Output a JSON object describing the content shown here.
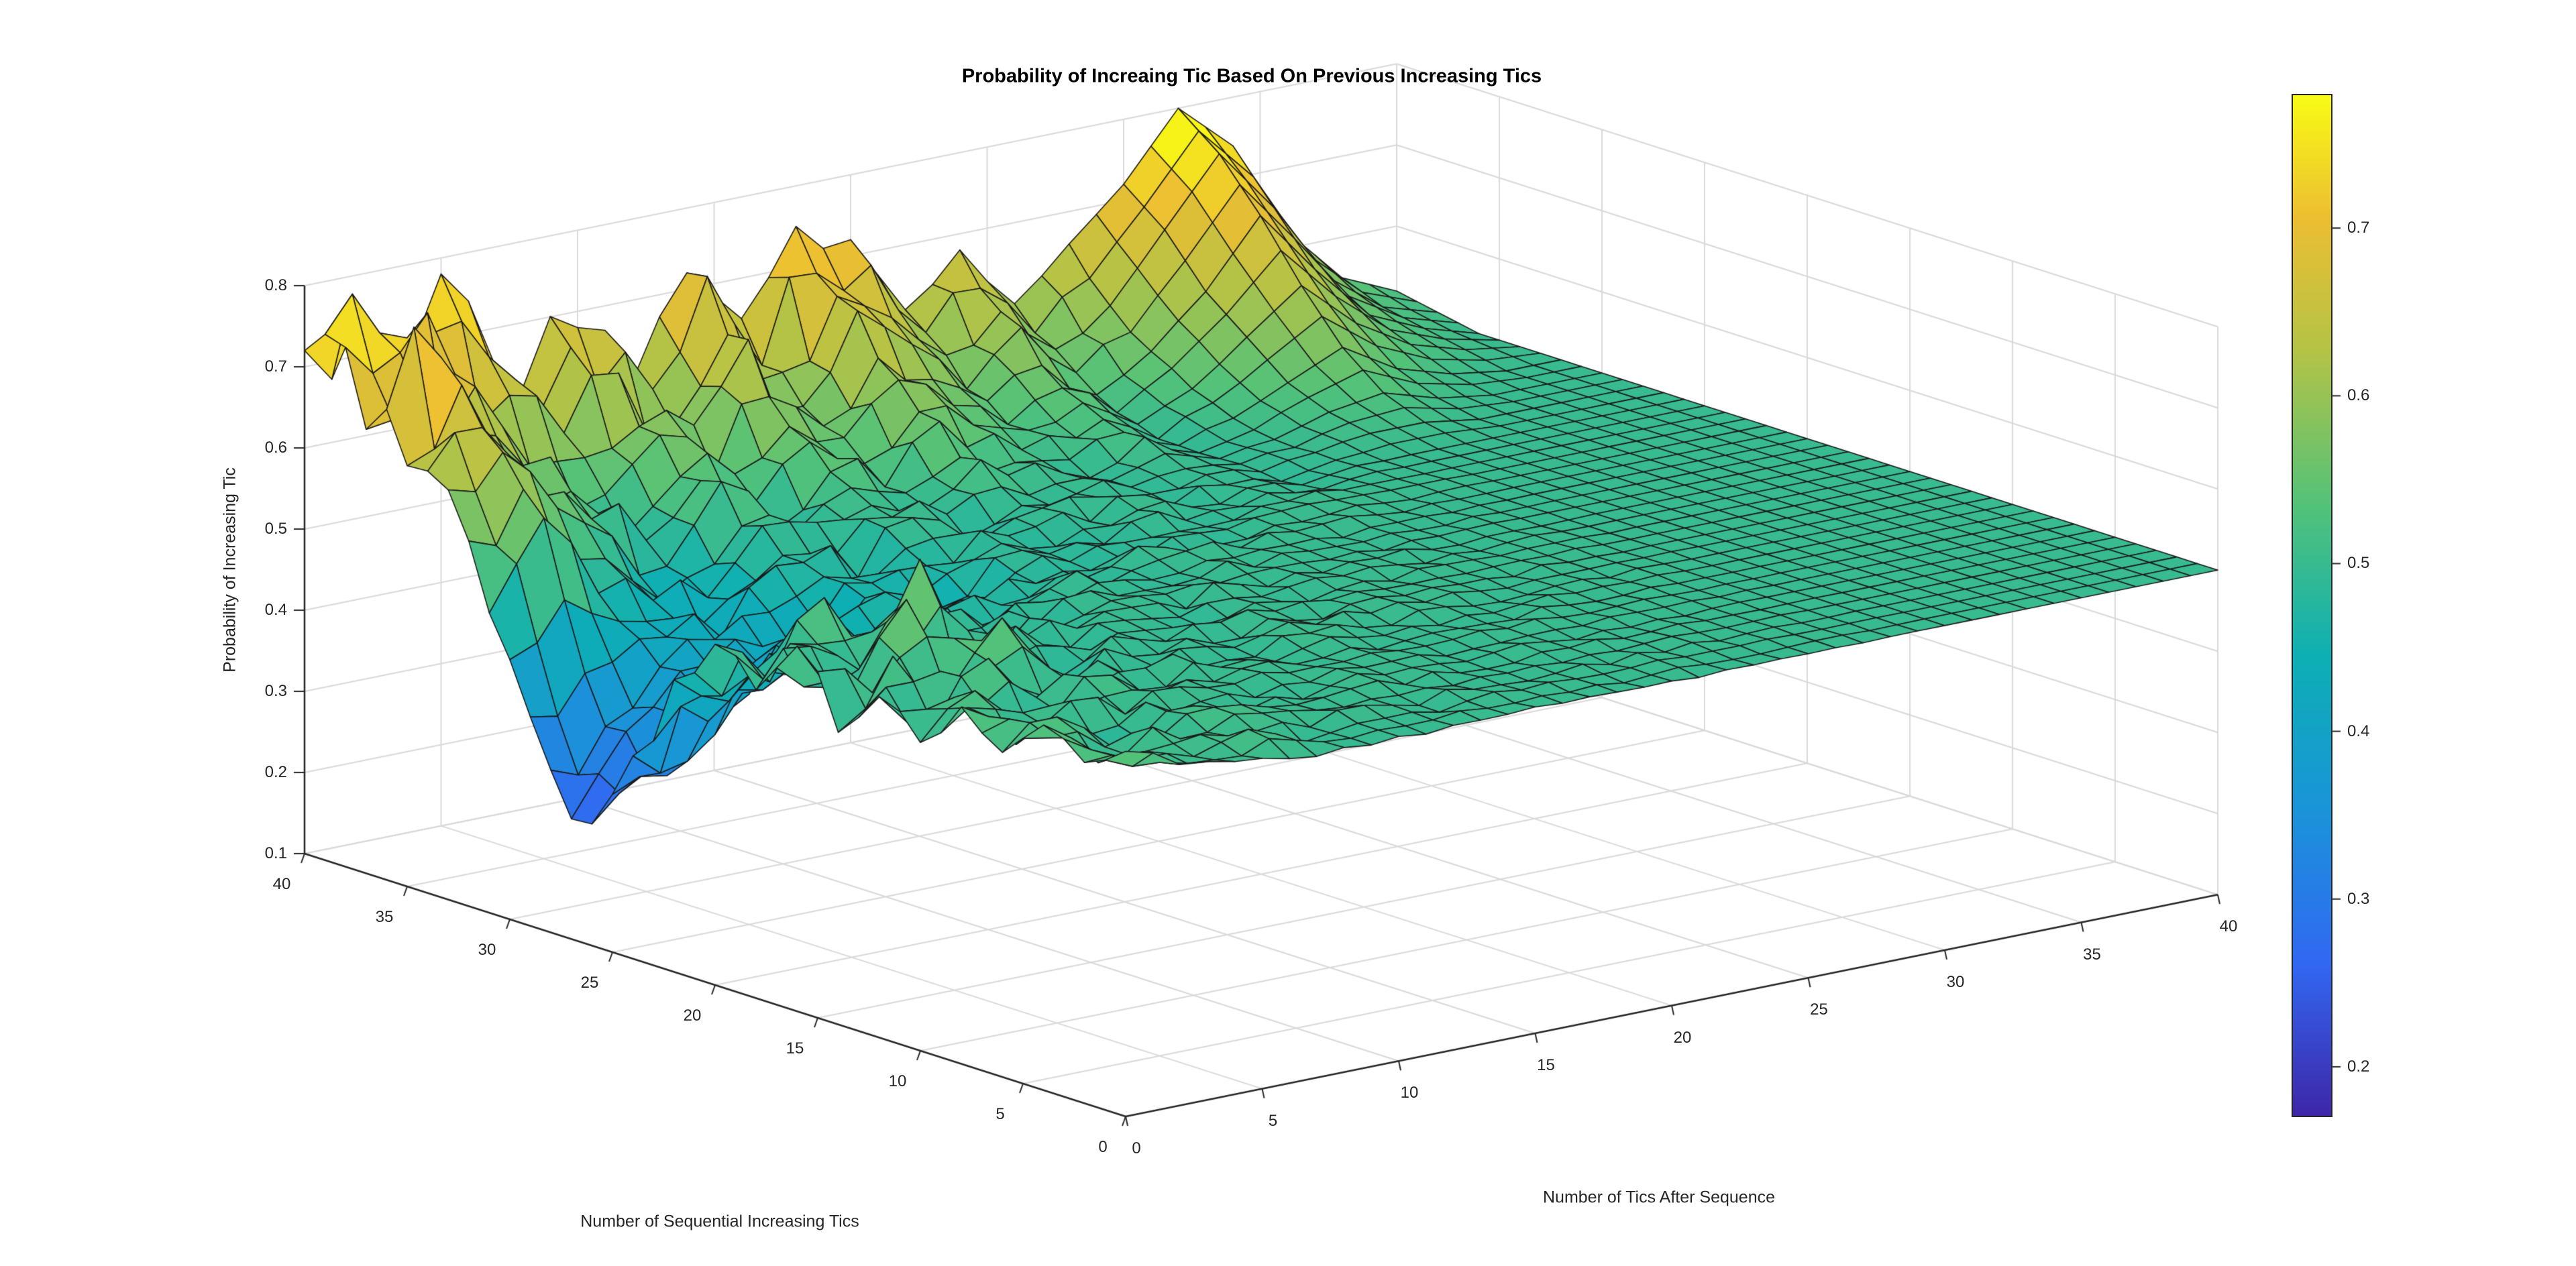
{
  "page": {
    "background": "#ffffff"
  },
  "chart_data": {
    "type": "surface",
    "title": "Probability of Increaing Tic Based On Previous Increasing Tics",
    "x_axis": {
      "label": "Number of Sequential Increasing Tics",
      "ticks": [
        0,
        5,
        10,
        15,
        20,
        25,
        30,
        35,
        40
      ],
      "range": [
        0,
        40
      ]
    },
    "y_axis": {
      "label": "Number of Tics After Sequence",
      "ticks": [
        0,
        5,
        10,
        15,
        20,
        25,
        30,
        35,
        40
      ],
      "range": [
        0,
        40
      ]
    },
    "z_axis": {
      "label": "Probability of Increasing Tic",
      "ticks": [
        0.1,
        0.2,
        0.3,
        0.4,
        0.5,
        0.6,
        0.7,
        0.8
      ],
      "range": [
        0.1,
        0.8
      ]
    },
    "colorbar": {
      "colormap": "parula",
      "caxis": [
        0.17,
        0.78
      ],
      "ticks": [
        0.2,
        0.3,
        0.4,
        0.5,
        0.6,
        0.7
      ]
    },
    "grid_step": 2,
    "z_grid": [
      [
        0.55,
        0.52,
        0.51,
        0.5,
        0.5,
        0.5,
        0.5,
        0.5,
        0.5,
        0.5,
        0.5,
        0.5,
        0.5,
        0.5,
        0.5,
        0.5,
        0.5,
        0.5,
        0.5,
        0.5,
        0.5
      ],
      [
        0.52,
        0.51,
        0.5,
        0.52,
        0.49,
        0.5,
        0.5,
        0.5,
        0.5,
        0.5,
        0.5,
        0.5,
        0.5,
        0.5,
        0.5,
        0.5,
        0.5,
        0.5,
        0.5,
        0.5,
        0.5
      ],
      [
        0.55,
        0.49,
        0.52,
        0.5,
        0.51,
        0.5,
        0.5,
        0.5,
        0.5,
        0.5,
        0.5,
        0.5,
        0.5,
        0.5,
        0.5,
        0.5,
        0.5,
        0.5,
        0.5,
        0.5,
        0.5
      ],
      [
        0.5,
        0.53,
        0.48,
        0.51,
        0.5,
        0.5,
        0.5,
        0.5,
        0.5,
        0.5,
        0.5,
        0.5,
        0.5,
        0.5,
        0.5,
        0.5,
        0.5,
        0.5,
        0.5,
        0.5,
        0.5
      ],
      [
        0.54,
        0.48,
        0.52,
        0.49,
        0.51,
        0.5,
        0.5,
        0.5,
        0.5,
        0.5,
        0.5,
        0.5,
        0.5,
        0.5,
        0.5,
        0.5,
        0.5,
        0.5,
        0.5,
        0.5,
        0.5
      ],
      [
        0.48,
        0.53,
        0.47,
        0.52,
        0.49,
        0.51,
        0.5,
        0.5,
        0.5,
        0.5,
        0.5,
        0.5,
        0.5,
        0.5,
        0.5,
        0.5,
        0.5,
        0.5,
        0.5,
        0.5,
        0.5
      ],
      [
        0.52,
        0.47,
        0.54,
        0.48,
        0.51,
        0.49,
        0.5,
        0.5,
        0.5,
        0.5,
        0.5,
        0.5,
        0.5,
        0.5,
        0.5,
        0.5,
        0.5,
        0.5,
        0.5,
        0.5,
        0.5
      ],
      [
        0.46,
        0.54,
        0.48,
        0.56,
        0.47,
        0.51,
        0.49,
        0.5,
        0.5,
        0.5,
        0.5,
        0.5,
        0.5,
        0.5,
        0.5,
        0.5,
        0.5,
        0.5,
        0.5,
        0.5,
        0.5
      ],
      [
        0.55,
        0.48,
        0.58,
        0.46,
        0.52,
        0.48,
        0.5,
        0.49,
        0.5,
        0.5,
        0.5,
        0.5,
        0.5,
        0.5,
        0.5,
        0.5,
        0.5,
        0.5,
        0.5,
        0.5,
        0.5
      ],
      [
        0.48,
        0.52,
        0.47,
        0.6,
        0.46,
        0.5,
        0.49,
        0.5,
        0.5,
        0.5,
        0.5,
        0.5,
        0.5,
        0.5,
        0.5,
        0.5,
        0.5,
        0.5,
        0.5,
        0.5,
        0.5
      ],
      [
        0.52,
        0.46,
        0.55,
        0.48,
        0.5,
        0.47,
        0.49,
        0.5,
        0.49,
        0.5,
        0.5,
        0.5,
        0.5,
        0.5,
        0.5,
        0.5,
        0.5,
        0.5,
        0.5,
        0.5,
        0.5
      ],
      [
        0.46,
        0.42,
        0.44,
        0.45,
        0.46,
        0.48,
        0.47,
        0.49,
        0.49,
        0.5,
        0.49,
        0.5,
        0.5,
        0.5,
        0.5,
        0.5,
        0.5,
        0.5,
        0.5,
        0.5,
        0.5
      ],
      [
        0.35,
        0.33,
        0.4,
        0.43,
        0.44,
        0.47,
        0.46,
        0.48,
        0.48,
        0.49,
        0.49,
        0.49,
        0.5,
        0.5,
        0.5,
        0.5,
        0.5,
        0.5,
        0.5,
        0.5,
        0.5
      ],
      [
        0.25,
        0.3,
        0.38,
        0.41,
        0.43,
        0.46,
        0.45,
        0.48,
        0.48,
        0.49,
        0.5,
        0.49,
        0.5,
        0.49,
        0.5,
        0.5,
        0.5,
        0.5,
        0.5,
        0.5,
        0.5
      ],
      [
        0.3,
        0.34,
        0.4,
        0.42,
        0.44,
        0.47,
        0.46,
        0.49,
        0.48,
        0.5,
        0.5,
        0.49,
        0.5,
        0.49,
        0.5,
        0.51,
        0.51,
        0.5,
        0.5,
        0.5,
        0.5
      ],
      [
        0.42,
        0.48,
        0.44,
        0.43,
        0.44,
        0.48,
        0.47,
        0.5,
        0.49,
        0.51,
        0.5,
        0.49,
        0.51,
        0.49,
        0.5,
        0.52,
        0.53,
        0.51,
        0.5,
        0.5,
        0.5
      ],
      [
        0.55,
        0.6,
        0.5,
        0.46,
        0.45,
        0.5,
        0.48,
        0.52,
        0.5,
        0.53,
        0.51,
        0.5,
        0.52,
        0.49,
        0.51,
        0.54,
        0.57,
        0.53,
        0.51,
        0.5,
        0.5
      ],
      [
        0.62,
        0.66,
        0.56,
        0.52,
        0.48,
        0.54,
        0.5,
        0.56,
        0.52,
        0.57,
        0.54,
        0.52,
        0.54,
        0.5,
        0.53,
        0.58,
        0.63,
        0.57,
        0.53,
        0.51,
        0.5
      ],
      [
        0.68,
        0.73,
        0.62,
        0.58,
        0.52,
        0.58,
        0.52,
        0.6,
        0.55,
        0.62,
        0.58,
        0.54,
        0.57,
        0.52,
        0.56,
        0.62,
        0.7,
        0.62,
        0.55,
        0.52,
        0.5
      ],
      [
        0.74,
        0.72,
        0.68,
        0.64,
        0.58,
        0.64,
        0.56,
        0.66,
        0.6,
        0.68,
        0.64,
        0.58,
        0.62,
        0.56,
        0.6,
        0.68,
        0.76,
        0.68,
        0.58,
        0.53,
        0.51
      ],
      [
        0.72,
        0.75,
        0.7,
        0.74,
        0.62,
        0.68,
        0.6,
        0.72,
        0.65,
        0.75,
        0.72,
        0.62,
        0.68,
        0.6,
        0.66,
        0.72,
        0.8,
        0.74,
        0.62,
        0.55,
        0.52
      ]
    ],
    "surface_detail": {
      "jitter_amp": 0.05,
      "jitter_v_decay": 30
    },
    "colors": {
      "axis": "#262626",
      "grid": "#d9d9d9",
      "mesh_edge": "#1b1b1b",
      "background": "#ffffff"
    }
  }
}
